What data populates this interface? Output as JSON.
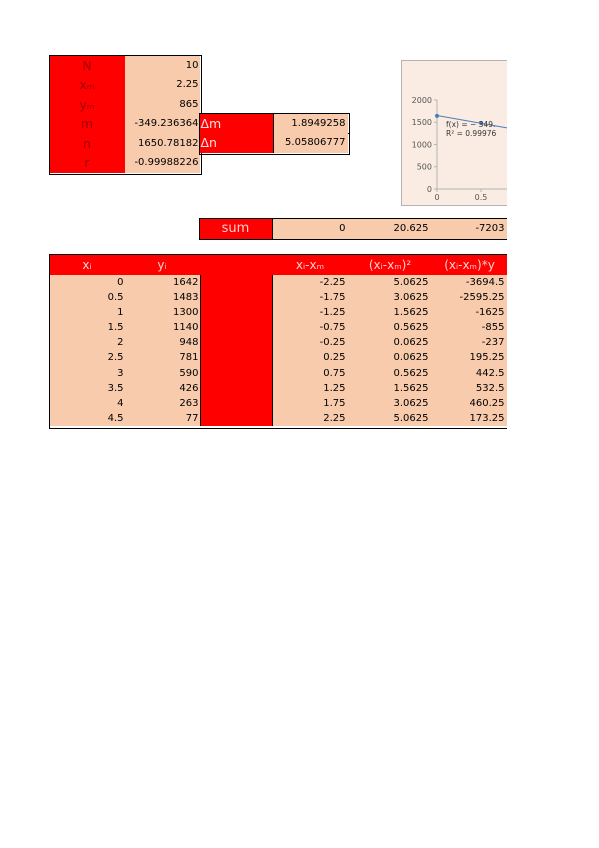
{
  "colors": {
    "label_red": "#ff0000",
    "cell_peach": "#f8cbad",
    "series_blue": "#4a7ebb",
    "chart_background": "#faece2"
  },
  "summary_block": {
    "rows": [
      {
        "label": "N",
        "value": "10"
      },
      {
        "label": "xₘ",
        "value": "2.25"
      },
      {
        "label": "yₘ",
        "value": "865"
      },
      {
        "label": "m",
        "value": "-349.236364"
      },
      {
        "label": "n",
        "value": "1650.78182"
      },
      {
        "label": "r",
        "value": "-0.99988226"
      }
    ]
  },
  "uncertainty_block": {
    "rows": [
      {
        "label": "Δm",
        "value": "1.8949258"
      },
      {
        "label": "Δn",
        "value": "5.05806777"
      }
    ]
  },
  "sum_row": {
    "label": "sum",
    "dx": "0",
    "dx2": "20.625",
    "dxy": "-7203"
  },
  "data_table": {
    "headers": {
      "x": "xᵢ",
      "y": "yᵢ",
      "dx": "xᵢ-xₘ",
      "dx2": "(xᵢ-xₘ)²",
      "dxy": "(xᵢ-xₘ)*y"
    },
    "rows": [
      {
        "x": "0",
        "y": "1642",
        "dx": "-2.25",
        "dx2": "5.0625",
        "dxy": "-3694.5"
      },
      {
        "x": "0.5",
        "y": "1483",
        "dx": "-1.75",
        "dx2": "3.0625",
        "dxy": "-2595.25"
      },
      {
        "x": "1",
        "y": "1300",
        "dx": "-1.25",
        "dx2": "1.5625",
        "dxy": "-1625"
      },
      {
        "x": "1.5",
        "y": "1140",
        "dx": "-0.75",
        "dx2": "0.5625",
        "dxy": "-855"
      },
      {
        "x": "2",
        "y": "948",
        "dx": "-0.25",
        "dx2": "0.0625",
        "dxy": "-237"
      },
      {
        "x": "2.5",
        "y": "781",
        "dx": "0.25",
        "dx2": "0.0625",
        "dxy": "195.25"
      },
      {
        "x": "3",
        "y": "590",
        "dx": "0.75",
        "dx2": "0.5625",
        "dxy": "442.5"
      },
      {
        "x": "3.5",
        "y": "426",
        "dx": "1.25",
        "dx2": "1.5625",
        "dxy": "532.5"
      },
      {
        "x": "4",
        "y": "263",
        "dx": "1.75",
        "dx2": "3.0625",
        "dxy": "460.25"
      },
      {
        "x": "4.5",
        "y": "77",
        "dx": "2.25",
        "dx2": "5.0625",
        "dxy": "173.25"
      }
    ]
  },
  "chart": {
    "y_ticks": [
      "2000",
      "1500",
      "1000",
      "500",
      "0"
    ],
    "x_ticks": [
      "0",
      "0.5"
    ],
    "trendline_label": "f(x) = − 349.",
    "r_squared_label": "R² = 0.99976"
  }
}
